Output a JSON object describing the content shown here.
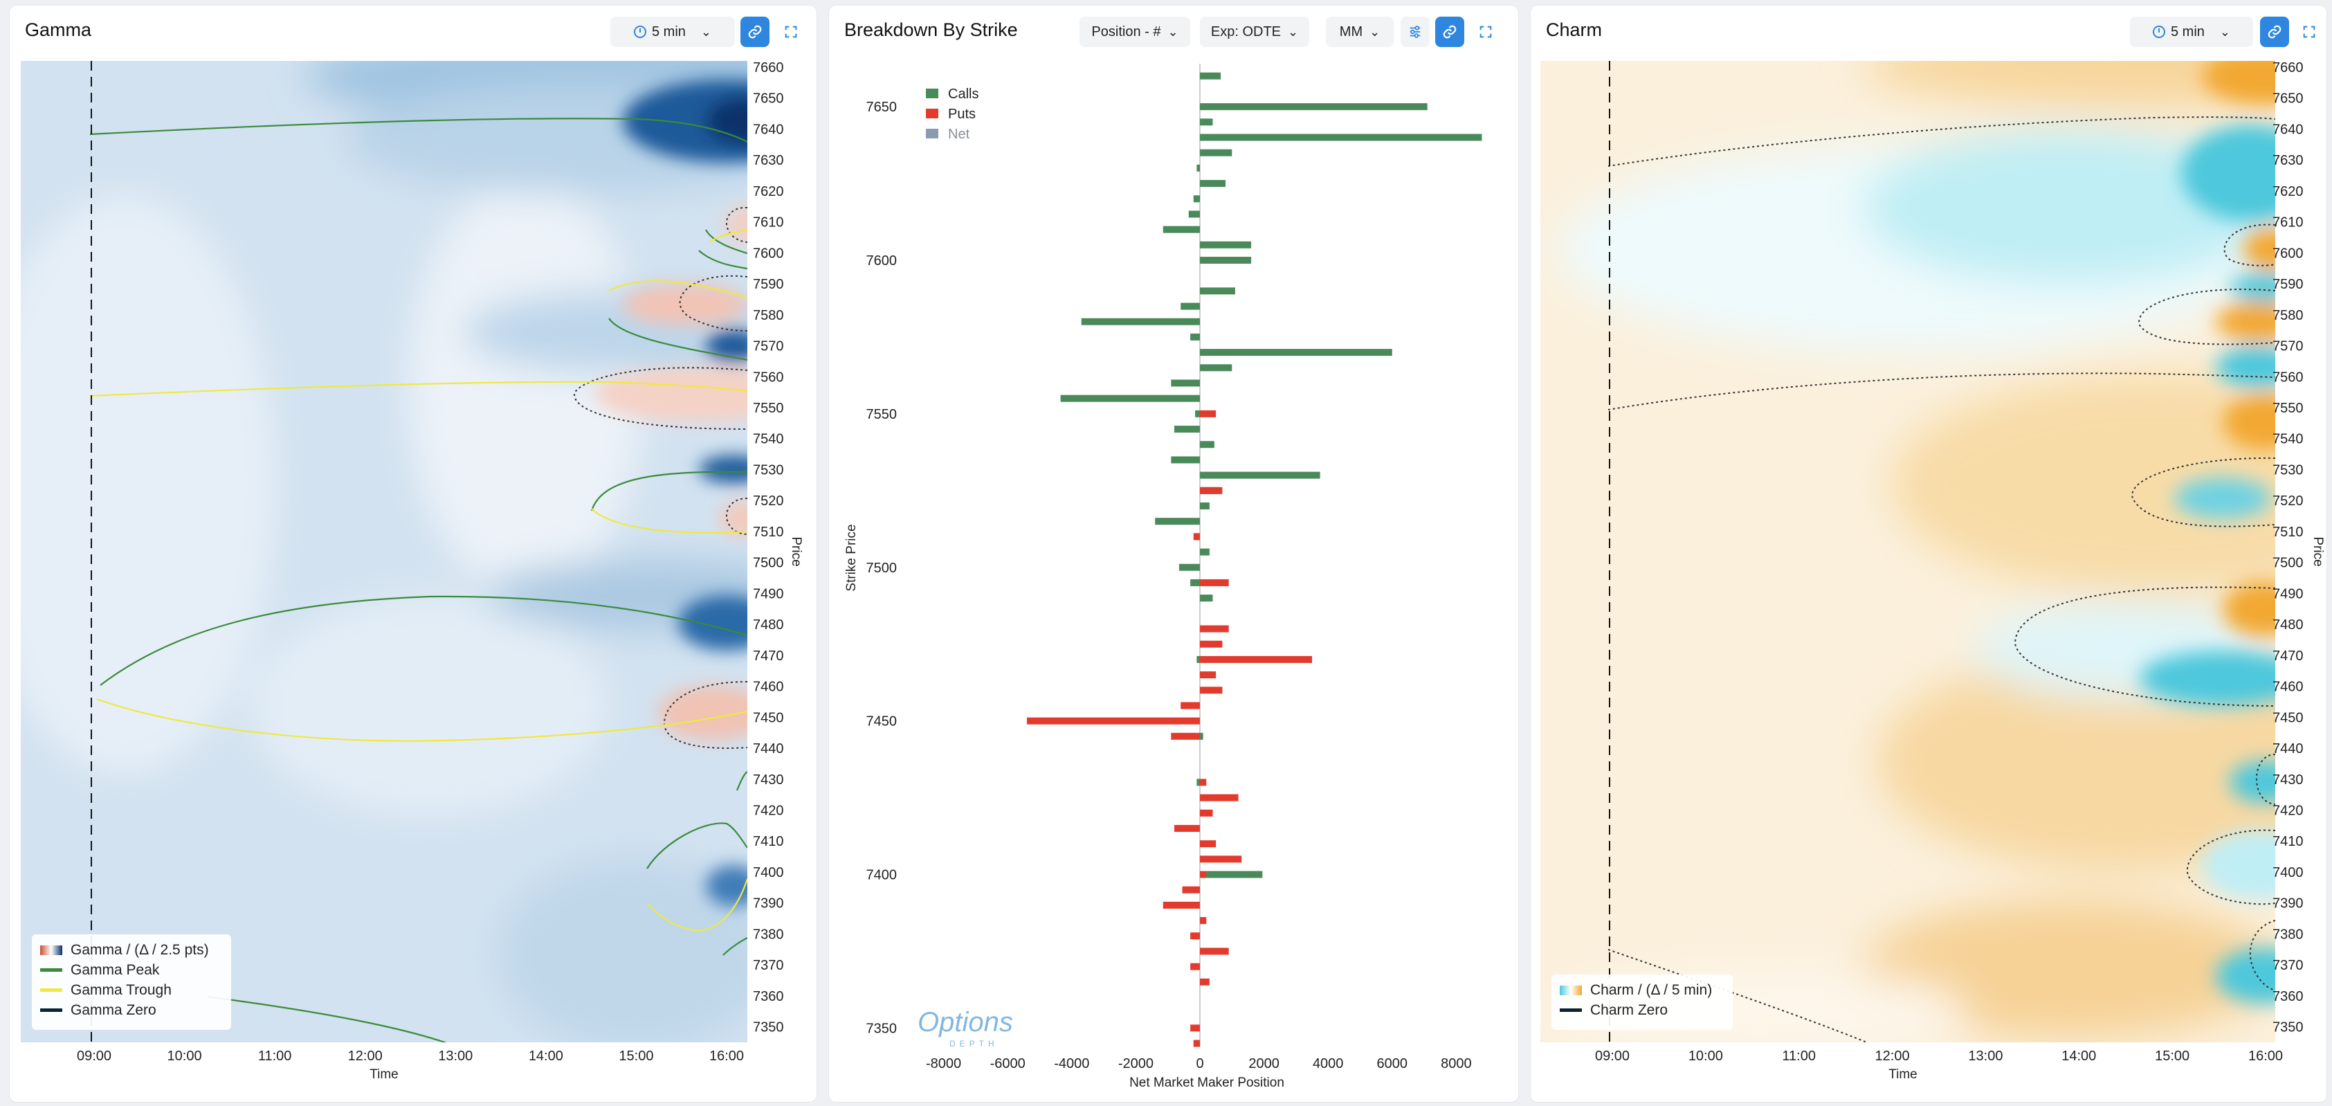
{
  "panels": {
    "gamma": {
      "title": "Gamma",
      "interval": "5 min",
      "legend": [
        "Gamma / (Δ / 2.5 pts)",
        "Gamma Peak",
        "Gamma Trough",
        "Gamma Zero"
      ]
    },
    "breakdown": {
      "title": "Breakdown By Strike",
      "position_select": "Position - #",
      "exp_select": "Exp: ODTE",
      "mm_select": "MM",
      "watermark_top": "Options",
      "watermark_bottom": "DEPTH"
    },
    "charm": {
      "title": "Charm",
      "interval": "5 min",
      "legend": [
        "Charm / (Δ / 5 min)",
        "Charm Zero"
      ]
    }
  },
  "icons": [
    "clock-icon",
    "chevron-down-icon",
    "link-icon",
    "expand-icon",
    "settings-sliders-icon"
  ],
  "colors": {
    "accent": "#2e86de",
    "calls": "#4a8a5a",
    "puts": "#e23b2e",
    "net": "#8a9bb0",
    "gamma_peak": "#3a8a3a",
    "gamma_trough": "#f0e840",
    "zero_line": "#0b2233",
    "gamma_pos": "#08306b",
    "gamma_neg": "#c8502e",
    "charm_pos": "#f2a830",
    "charm_neg": "#4ec8dc"
  },
  "chart_data": [
    {
      "type": "heatmap",
      "title": "Gamma",
      "xlabel": "Time",
      "ylabel": "Price",
      "x_ticks": [
        "09:00",
        "10:00",
        "11:00",
        "12:00",
        "13:00",
        "14:00",
        "15:00",
        "16:00"
      ],
      "y_ticks": [
        7660,
        7650,
        7640,
        7630,
        7620,
        7610,
        7600,
        7590,
        7580,
        7570,
        7560,
        7550,
        7540,
        7530,
        7520,
        7510,
        7500,
        7490,
        7480,
        7470,
        7460,
        7450,
        7440,
        7430,
        7420,
        7410,
        7400,
        7390,
        7380,
        7370,
        7360,
        7350
      ],
      "ylim": [
        7345,
        7662
      ],
      "current_time": "09:00",
      "legend": [
        "Gamma / (Δ / 2.5 pts)",
        "Gamma Peak",
        "Gamma Trough",
        "Gamma Zero"
      ],
      "legend_position": "bottom-left"
    },
    {
      "type": "bar",
      "orientation": "horizontal",
      "title": "Breakdown By Strike",
      "xlabel": "Net Market Maker Position",
      "ylabel": "Strike Price",
      "xlim": [
        -8600,
        9000
      ],
      "ylim": [
        7344,
        7664
      ],
      "x_ticks": [
        -8000,
        -6000,
        -4000,
        -2000,
        0,
        2000,
        4000,
        6000,
        8000
      ],
      "y_ticks": [
        7650,
        7600,
        7550,
        7500,
        7450,
        7400,
        7350
      ],
      "legend": [
        "Calls",
        "Puts",
        "Net"
      ],
      "legend_position": "top-left",
      "series": [
        {
          "name": "Calls",
          "strikes": [
            7660,
            7655,
            7650,
            7645,
            7640,
            7635,
            7630,
            7625,
            7620,
            7615,
            7610,
            7605,
            7600,
            7595,
            7590,
            7585,
            7580,
            7575,
            7570,
            7565,
            7560,
            7555,
            7550,
            7545,
            7540,
            7535,
            7530,
            7525,
            7520,
            7515,
            7510,
            7505,
            7500,
            7495,
            7490,
            7485,
            7480,
            7475,
            7470,
            7465,
            7460,
            7455,
            7450,
            7445,
            7440,
            7435,
            7430,
            7425,
            7420,
            7415,
            7410,
            7405,
            7400,
            7395,
            7390,
            7385,
            7380,
            7375,
            7370,
            7365,
            7360,
            7355,
            7350,
            7345
          ],
          "values": [
            650,
            0,
            7100,
            400,
            8800,
            1000,
            -100,
            800,
            -200,
            -350,
            -1150,
            1600,
            1600,
            0,
            1100,
            -600,
            -3700,
            -300,
            6000,
            1000,
            -900,
            -4350,
            -150,
            -800,
            450,
            -900,
            3750,
            600,
            300,
            -1400,
            -150,
            300,
            -650,
            -300,
            400,
            0,
            0,
            0,
            -100,
            0,
            0,
            0,
            0,
            100,
            0,
            0,
            -100,
            0,
            0,
            0,
            0,
            0,
            1950,
            0,
            0,
            0,
            0,
            0,
            0,
            0,
            0,
            0,
            0,
            0
          ]
        },
        {
          "name": "Puts",
          "strikes": [
            7660,
            7655,
            7650,
            7645,
            7640,
            7635,
            7630,
            7625,
            7620,
            7615,
            7610,
            7605,
            7600,
            7595,
            7590,
            7585,
            7580,
            7575,
            7570,
            7565,
            7560,
            7555,
            7550,
            7545,
            7540,
            7535,
            7530,
            7525,
            7520,
            7515,
            7510,
            7505,
            7500,
            7495,
            7490,
            7485,
            7480,
            7475,
            7470,
            7465,
            7460,
            7455,
            7450,
            7445,
            7440,
            7435,
            7430,
            7425,
            7420,
            7415,
            7410,
            7405,
            7400,
            7395,
            7390,
            7385,
            7380,
            7375,
            7370,
            7365,
            7360,
            7355,
            7350,
            7345
          ],
          "values": [
            0,
            0,
            0,
            0,
            0,
            0,
            0,
            0,
            0,
            0,
            0,
            0,
            0,
            0,
            0,
            0,
            0,
            0,
            0,
            0,
            0,
            0,
            500,
            0,
            0,
            0,
            0,
            700,
            0,
            0,
            -200,
            0,
            0,
            900,
            0,
            0,
            900,
            700,
            3500,
            500,
            700,
            -600,
            -5400,
            -900,
            0,
            0,
            200,
            1200,
            400,
            -800,
            500,
            1300,
            200,
            -550,
            -1150,
            200,
            -300,
            900,
            -300,
            300,
            0,
            0,
            -300,
            -200
          ]
        },
        {
          "name": "Net",
          "strikes": [],
          "values": []
        }
      ]
    },
    {
      "type": "heatmap",
      "title": "Charm",
      "xlabel": "Time",
      "ylabel": "Price",
      "x_ticks": [
        "09:00",
        "10:00",
        "11:00",
        "12:00",
        "13:00",
        "14:00",
        "15:00",
        "16:00"
      ],
      "y_ticks": [
        7660,
        7650,
        7640,
        7630,
        7620,
        7610,
        7600,
        7590,
        7580,
        7570,
        7560,
        7550,
        7540,
        7530,
        7520,
        7510,
        7500,
        7490,
        7480,
        7470,
        7460,
        7450,
        7440,
        7430,
        7420,
        7410,
        7400,
        7390,
        7380,
        7370,
        7360,
        7350
      ],
      "ylim": [
        7345,
        7662
      ],
      "current_time": "09:00",
      "legend": [
        "Charm / (Δ / 5 min)",
        "Charm Zero"
      ],
      "legend_position": "bottom-left"
    }
  ]
}
